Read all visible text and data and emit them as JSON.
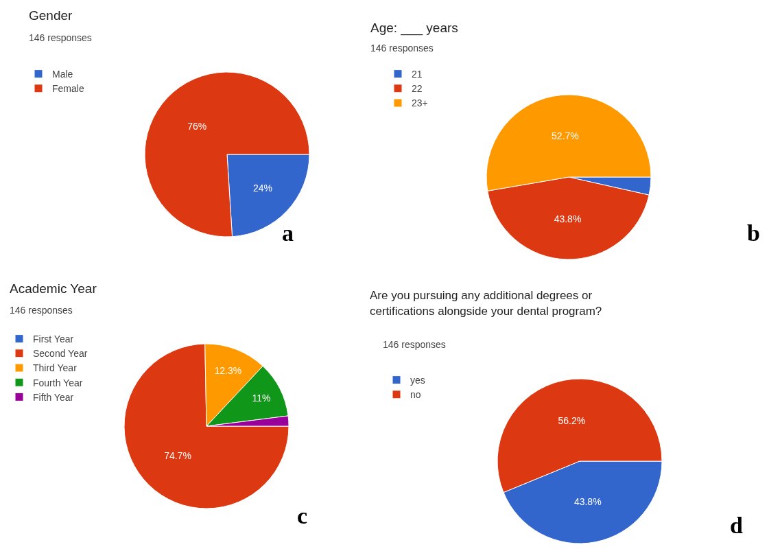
{
  "chart_data": [
    {
      "type": "pie",
      "title": "Gender",
      "subtitle": "146 responses",
      "categories": [
        "Male",
        "Female"
      ],
      "values": [
        24,
        76
      ],
      "colors": [
        "#3366cc",
        "#dc3912"
      ],
      "value_labels": [
        "24%",
        "76%"
      ],
      "legend": "top left",
      "annotations": [
        "a"
      ]
    },
    {
      "type": "pie",
      "title": "Age: ___ years",
      "subtitle": "146 responses",
      "categories": [
        "21",
        "22",
        "23+"
      ],
      "values": [
        3.5,
        43.8,
        52.7
      ],
      "colors": [
        "#3366cc",
        "#dc3912",
        "#ff9900"
      ],
      "value_labels": [
        null,
        "43.8%",
        "52.7%"
      ],
      "legend": "top left",
      "annotations": [
        "b"
      ]
    },
    {
      "type": "pie",
      "title": "Academic Year",
      "subtitle": "146 responses",
      "categories": [
        "First Year",
        "Second Year",
        "Third Year",
        "Fourth Year",
        "Fifth Year"
      ],
      "values": [
        0,
        74.7,
        12.3,
        11,
        2
      ],
      "colors": [
        "#3366cc",
        "#dc3912",
        "#ff9900",
        "#109618",
        "#990099"
      ],
      "value_labels": [
        null,
        "74.7%",
        "12.3%",
        "11%",
        null
      ],
      "legend": "top left",
      "annotations": [
        "c"
      ]
    },
    {
      "type": "pie",
      "title": "Are you pursuing any additional degrees or\ncertifications alongside your dental program?",
      "subtitle": "146 responses",
      "categories": [
        "yes",
        "no"
      ],
      "values": [
        43.8,
        56.2
      ],
      "colors": [
        "#3366cc",
        "#dc3912"
      ],
      "value_labels": [
        "43.8%",
        "56.2%"
      ],
      "legend": "top left",
      "annotations": [
        "d"
      ]
    }
  ]
}
